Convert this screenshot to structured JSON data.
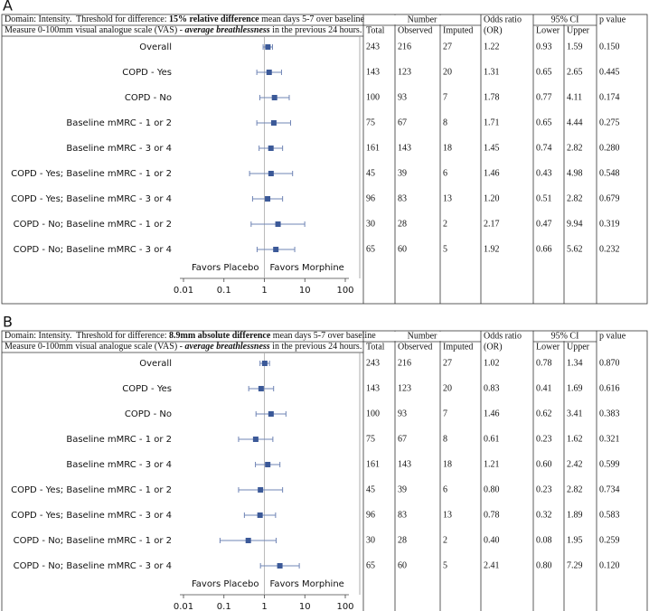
{
  "chart_data": [
    {
      "type": "forest",
      "panel": "A",
      "header_line1": [
        "Domain: Intensity.  Threshold for difference: ",
        "15% relative difference",
        " mean days 5-7 over baseline"
      ],
      "header_line2": [
        "Measure 0-100mm visual analogue scale (VAS) - ",
        "average breathlessness",
        " in the previous 24 hours."
      ],
      "number_header": "Number",
      "count_headers": [
        "Total",
        "Observed",
        "Imputed"
      ],
      "or_header": [
        "Odds ratio",
        "(OR)"
      ],
      "ci_header": "95% CI",
      "ci_subheaders": [
        "Lower",
        "Upper"
      ],
      "p_header": "p value",
      "categories": [
        "Overall",
        "COPD - Yes",
        "COPD - No",
        "Baseline mMRC - 1 or 2",
        "Baseline mMRC - 3 or 4",
        "COPD - Yes; Baseline mMRC - 1 or 2",
        "COPD - Yes; Baseline mMRC - 3 or 4",
        "COPD - No; Baseline mMRC - 1 or 2",
        "COPD - No; Baseline mMRC - 3 or 4"
      ],
      "values": [
        1.22,
        1.31,
        1.78,
        1.71,
        1.45,
        1.46,
        1.2,
        2.17,
        1.92
      ],
      "value_labels": [
        "1.22",
        "1.31",
        "1.78",
        "1.71",
        "1.45",
        "1.46",
        "1.20",
        "2.17",
        "1.92"
      ],
      "lower": [
        0.93,
        0.65,
        0.77,
        0.65,
        0.74,
        0.43,
        0.51,
        0.47,
        0.66
      ],
      "lower_labels": [
        "0.93",
        "0.65",
        "0.77",
        "0.65",
        "0.74",
        "0.43",
        "0.51",
        "0.47",
        "0.66"
      ],
      "upper": [
        1.59,
        2.65,
        4.11,
        4.44,
        2.82,
        4.98,
        2.82,
        9.94,
        5.62
      ],
      "upper_labels": [
        "1.59",
        "2.65",
        "4.11",
        "4.44",
        "2.82",
        "4.98",
        "2.82",
        "9.94",
        "5.62"
      ],
      "total": [
        243,
        143,
        100,
        75,
        161,
        45,
        96,
        30,
        65
      ],
      "observed": [
        216,
        123,
        93,
        67,
        143,
        39,
        83,
        28,
        60
      ],
      "imputed": [
        27,
        20,
        7,
        8,
        18,
        6,
        13,
        2,
        5
      ],
      "p_values": [
        "0.150",
        "0.445",
        "0.174",
        "0.275",
        "0.280",
        "0.548",
        "0.679",
        "0.319",
        "0.232"
      ],
      "annotations": [
        "Favors Placebo",
        "Favors Morphine"
      ],
      "log_x": true,
      "xlim": [
        0.01,
        100
      ],
      "xticks": [
        0.01,
        0.1,
        1,
        10,
        100
      ],
      "color": "#3b5998"
    },
    {
      "type": "forest",
      "panel": "B",
      "header_line1": [
        "Domain: Intensity.  Threshold for difference: ",
        "8.9mm absolute difference",
        " mean days 5-7 over baseline"
      ],
      "header_line2": [
        "Measure 0-100mm visual analogue scale (VAS) - ",
        "average breathlessness",
        " in the previous 24 hours."
      ],
      "number_header": "Number",
      "count_headers": [
        "Total",
        "Observed",
        "Imputed"
      ],
      "or_header": [
        "Odds ratio",
        "(OR)"
      ],
      "ci_header": "95% CI",
      "ci_subheaders": [
        "Lower",
        "Upper"
      ],
      "p_header": "p value",
      "categories": [
        "Overall",
        "COPD - Yes",
        "COPD - No",
        "Baseline mMRC - 1 or 2",
        "Baseline mMRC - 3 or 4",
        "COPD - Yes; Baseline mMRC - 1 or 2",
        "COPD - Yes; Baseline mMRC - 3 or 4",
        "COPD - No; Baseline mMRC - 1 or 2",
        "COPD - No; Baseline mMRC - 3 or 4"
      ],
      "values": [
        1.02,
        0.83,
        1.46,
        0.61,
        1.21,
        0.8,
        0.78,
        0.4,
        2.41
      ],
      "value_labels": [
        "1.02",
        "0.83",
        "1.46",
        "0.61",
        "1.21",
        "0.80",
        "0.78",
        "0.40",
        "2.41"
      ],
      "lower": [
        0.78,
        0.41,
        0.62,
        0.23,
        0.6,
        0.23,
        0.32,
        0.08,
        0.8
      ],
      "lower_labels": [
        "0.78",
        "0.41",
        "0.62",
        "0.23",
        "0.60",
        "0.23",
        "0.32",
        "0.08",
        "0.80"
      ],
      "upper": [
        1.34,
        1.69,
        3.41,
        1.62,
        2.42,
        2.82,
        1.89,
        1.95,
        7.29
      ],
      "upper_labels": [
        "1.34",
        "1.69",
        "3.41",
        "1.62",
        "2.42",
        "2.82",
        "1.89",
        "1.95",
        "7.29"
      ],
      "total": [
        243,
        143,
        100,
        75,
        161,
        45,
        96,
        30,
        65
      ],
      "observed": [
        216,
        123,
        93,
        67,
        143,
        39,
        83,
        28,
        60
      ],
      "imputed": [
        27,
        20,
        7,
        8,
        18,
        6,
        13,
        2,
        5
      ],
      "p_values": [
        "0.870",
        "0.616",
        "0.383",
        "0.321",
        "0.599",
        "0.734",
        "0.583",
        "0.259",
        "0.120"
      ],
      "annotations": [
        "Favors Placebo",
        "Favors Morphine"
      ],
      "log_x": true,
      "xlim": [
        0.01,
        100
      ],
      "xticks": [
        0.01,
        0.1,
        1,
        10,
        100
      ],
      "color": "#3b5998"
    }
  ]
}
